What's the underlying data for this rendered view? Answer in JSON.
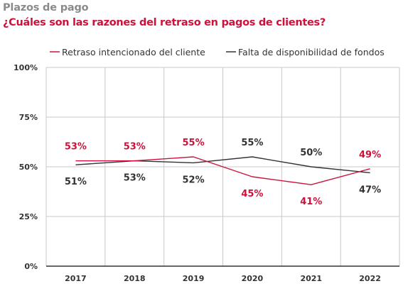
{
  "title": "Plazos de pago",
  "subtitle": "¿Cuáles son las razones del retraso en pagos de clientes?",
  "colors": {
    "red": "#d0103a",
    "dark": "#333333",
    "grid": "#c8c8c8"
  },
  "chart_data": {
    "type": "line",
    "categories": [
      "2017",
      "2018",
      "2019",
      "2020",
      "2021",
      "2022"
    ],
    "series": [
      {
        "name": "Retraso intencionado del cliente",
        "color": "#d0103a",
        "values": [
          53,
          53,
          55,
          45,
          41,
          49
        ],
        "labels": [
          "53%",
          "53%",
          "55%",
          "45%",
          "41%",
          "49%"
        ]
      },
      {
        "name": "Falta de disponibilidad de fondos",
        "color": "#333333",
        "values": [
          51,
          53,
          52,
          55,
          50,
          47
        ],
        "labels": [
          "51%",
          "53%",
          "52%",
          "55%",
          "50%",
          "47%"
        ]
      }
    ],
    "yticks": [
      0,
      25,
      50,
      75,
      100
    ],
    "ytick_labels": [
      "0%",
      "25%",
      "50%",
      "75%",
      "100%"
    ],
    "ylim": [
      0,
      100
    ],
    "grid": true,
    "legend": "top"
  }
}
